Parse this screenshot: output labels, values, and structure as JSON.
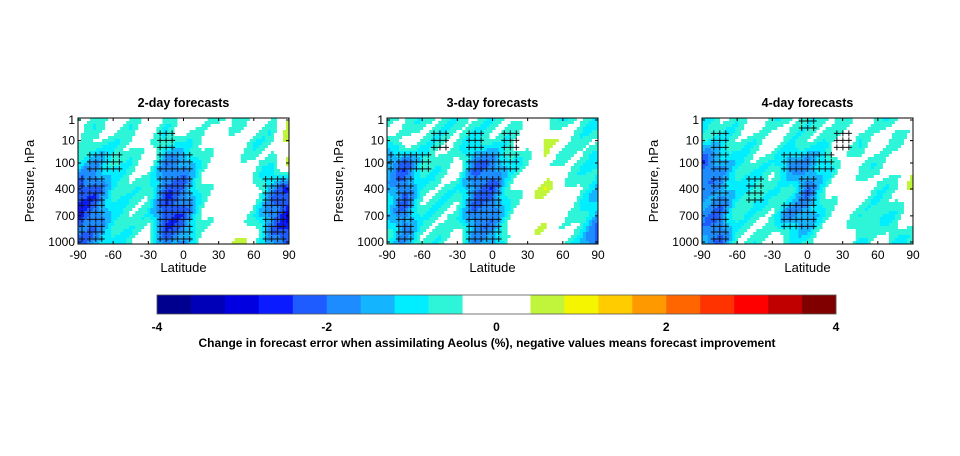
{
  "chart_data": {
    "type": "heatmap",
    "shared": {
      "xlabel": "Latitude",
      "ylabel": "Pressure, hPa",
      "x_ticks": [
        -90,
        -60,
        -30,
        0,
        30,
        60,
        90
      ],
      "y_ticks": [
        1,
        10,
        100,
        400,
        700,
        1000
      ],
      "xlim": [
        -90,
        90
      ],
      "y_levels": [
        1,
        10,
        100,
        400,
        700,
        1000
      ],
      "latitudes": [
        -90,
        -75,
        -60,
        -45,
        -30,
        -15,
        0,
        15,
        30,
        45,
        60,
        75,
        90
      ]
    },
    "panels": [
      {
        "title": "2-day forecasts",
        "values": [
          [
            -0.6,
            -0.6,
            0,
            -0.6,
            0,
            -0.6,
            0,
            0,
            -0.6,
            -0.6,
            0,
            -0.6,
            0.6
          ],
          [
            0,
            -0.6,
            -0.6,
            -0.6,
            0,
            -0.9,
            -0.6,
            -0.6,
            0,
            0,
            -0.6,
            -0.6,
            0.6
          ],
          [
            -0.9,
            -1.6,
            -0.9,
            -0.6,
            0,
            -1.8,
            -1.8,
            -0.6,
            0,
            0,
            -0.6,
            -0.6,
            0.6
          ],
          [
            -2.5,
            -2.2,
            -0.9,
            -0.6,
            -0.6,
            -2.2,
            -2.0,
            -0.6,
            0,
            0,
            0,
            -1.6,
            -2.5
          ],
          [
            -2.5,
            -2.0,
            -0.9,
            -0.6,
            -0.6,
            -2.5,
            -2.2,
            -0.6,
            0,
            0,
            -0.6,
            -2.0,
            -2.8
          ],
          [
            -2.0,
            -1.6,
            -0.9,
            -0.6,
            0,
            -2.0,
            -1.6,
            0,
            0,
            0.6,
            0,
            -1.6,
            -2.5
          ]
        ],
        "hatched": [
          [
            0,
            0,
            0,
            0,
            0,
            0,
            0,
            0,
            0,
            0,
            0,
            0,
            0
          ],
          [
            0,
            0,
            0,
            0,
            0,
            1,
            0,
            0,
            0,
            0,
            0,
            0,
            0
          ],
          [
            0,
            1,
            1,
            0,
            0,
            1,
            1,
            0,
            0,
            0,
            0,
            0,
            0
          ],
          [
            1,
            1,
            0,
            0,
            0,
            1,
            1,
            0,
            0,
            0,
            0,
            1,
            1
          ],
          [
            1,
            1,
            0,
            0,
            0,
            1,
            1,
            0,
            0,
            0,
            0,
            1,
            1
          ],
          [
            1,
            1,
            0,
            0,
            0,
            1,
            1,
            0,
            0,
            0,
            0,
            1,
            1
          ]
        ]
      },
      {
        "title": "3-day forecasts",
        "values": [
          [
            -0.6,
            -0.6,
            -0.6,
            -0.6,
            -0.6,
            -0.6,
            -0.6,
            -0.6,
            0,
            -0.6,
            -0.6,
            -0.6,
            -0.9
          ],
          [
            -0.6,
            0,
            -0.6,
            -0.6,
            -0.6,
            -0.9,
            -0.6,
            -0.6,
            0,
            0.6,
            0,
            -0.6,
            -0.6
          ],
          [
            -1.6,
            -2.2,
            -0.9,
            -0.6,
            0,
            -2.0,
            -2.0,
            -0.9,
            -0.6,
            0,
            -0.6,
            -0.6,
            -0.9
          ],
          [
            -1.2,
            -2.2,
            -0.6,
            -0.6,
            -0.6,
            -2.0,
            -2.2,
            -0.6,
            0,
            0.6,
            0,
            -0.6,
            -1.2
          ],
          [
            -0.9,
            -2.0,
            -0.6,
            -0.6,
            -0.6,
            -2.0,
            -1.8,
            -0.6,
            0,
            0,
            0,
            -0.6,
            -1.6
          ],
          [
            -0.6,
            -1.6,
            -0.6,
            -0.6,
            0,
            -1.6,
            -1.6,
            0,
            0,
            0.6,
            -0.6,
            -0.9,
            -2.5
          ]
        ],
        "hatched": [
          [
            0,
            0,
            0,
            0,
            0,
            0,
            0,
            0,
            0,
            0,
            0,
            0,
            0
          ],
          [
            0,
            0,
            0,
            1,
            0,
            1,
            0,
            1,
            0,
            0,
            0,
            0,
            0
          ],
          [
            1,
            1,
            1,
            0,
            0,
            1,
            1,
            1,
            0,
            0,
            0,
            0,
            0
          ],
          [
            0,
            1,
            0,
            0,
            0,
            1,
            1,
            0,
            0,
            0,
            0,
            0,
            0
          ],
          [
            0,
            1,
            0,
            0,
            0,
            1,
            1,
            0,
            0,
            0,
            0,
            0,
            0
          ],
          [
            0,
            1,
            0,
            0,
            0,
            1,
            1,
            0,
            0,
            0,
            0,
            0,
            0
          ]
        ]
      },
      {
        "title": "4-day forecasts",
        "values": [
          [
            -0.9,
            -0.6,
            -0.6,
            0,
            -0.6,
            -0.6,
            -0.6,
            -0.6,
            -0.6,
            0,
            -0.6,
            -0.6,
            0
          ],
          [
            -0.9,
            -0.9,
            -0.6,
            -0.6,
            0,
            -0.6,
            -0.6,
            -0.6,
            0,
            -0.6,
            0,
            -0.6,
            0
          ],
          [
            -2.5,
            -1.6,
            -0.9,
            -0.6,
            -0.6,
            -1.8,
            -1.6,
            -1.2,
            0,
            -0.6,
            -0.6,
            0,
            0
          ],
          [
            -1.6,
            -1.8,
            -0.9,
            -0.9,
            -0.6,
            -0.6,
            -2.0,
            -0.6,
            0,
            0,
            -0.6,
            -0.6,
            0.6
          ],
          [
            -1.8,
            -2.0,
            -0.6,
            -0.6,
            -0.6,
            -1.8,
            -1.6,
            -0.6,
            0,
            -0.6,
            -0.9,
            -0.6,
            0
          ],
          [
            -1.6,
            -2.2,
            -0.6,
            -0.6,
            0,
            -0.6,
            -0.9,
            0,
            0,
            -0.9,
            0,
            -0.9,
            -0.6
          ]
        ],
        "hatched": [
          [
            0,
            0,
            0,
            0,
            0,
            0,
            1,
            0,
            0,
            0,
            0,
            0,
            0
          ],
          [
            0,
            1,
            0,
            0,
            0,
            0,
            0,
            0,
            1,
            0,
            0,
            0,
            0
          ],
          [
            0,
            1,
            0,
            0,
            0,
            1,
            1,
            1,
            0,
            0,
            0,
            0,
            0
          ],
          [
            0,
            1,
            0,
            1,
            0,
            0,
            1,
            0,
            0,
            0,
            0,
            0,
            0
          ],
          [
            0,
            1,
            0,
            0,
            0,
            1,
            1,
            0,
            0,
            0,
            0,
            0,
            0
          ],
          [
            0,
            1,
            0,
            0,
            0,
            0,
            0,
            0,
            0,
            0,
            0,
            0,
            0
          ]
        ]
      }
    ],
    "colorbar": {
      "label": "Change in forecast error when assimilating Aeolus (%), negative values means forecast improvement",
      "range": [
        -4,
        4
      ],
      "step": 0.4,
      "tick_labels": [
        "-4",
        "-2",
        "0",
        "2",
        "4"
      ],
      "ticks": [
        -4,
        -2,
        0,
        2,
        4
      ],
      "colors": [
        "#00008f",
        "#0000b8",
        "#0000e0",
        "#0a1cff",
        "#1f5cff",
        "#1c8cff",
        "#14b4ff",
        "#00eeff",
        "#2ef5d8",
        "#ffffff",
        "#ffffff",
        "#c0f53c",
        "#f5f500",
        "#ffcc00",
        "#ff9900",
        "#ff6600",
        "#ff3300",
        "#ff0000",
        "#c00000",
        "#800000"
      ]
    }
  }
}
